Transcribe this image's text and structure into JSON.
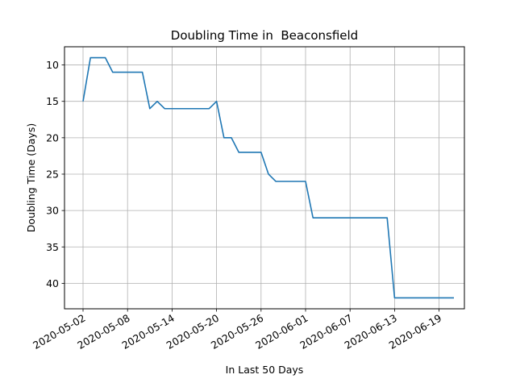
{
  "chart_data": {
    "type": "line",
    "title": "Doubling Time in  Beaconsfield",
    "xlabel": "In Last 50 Days",
    "ylabel": "Doubling Time (Days)",
    "y_inverted": true,
    "ylim": [
      43.5,
      7.5
    ],
    "y_ticks": [
      10,
      15,
      20,
      25,
      30,
      35,
      40
    ],
    "x_ticks": [
      "2020-05-02",
      "2020-05-08",
      "2020-05-14",
      "2020-05-20",
      "2020-05-26",
      "2020-06-01",
      "2020-06-07",
      "2020-06-13",
      "2020-06-19"
    ],
    "grid": true,
    "line_color": "#1f77b4",
    "series": [
      {
        "x": [
          "2020-05-02",
          "2020-05-03",
          "2020-05-04",
          "2020-05-05",
          "2020-05-06",
          "2020-05-07",
          "2020-05-08",
          "2020-05-09",
          "2020-05-10",
          "2020-05-11",
          "2020-05-12",
          "2020-05-13",
          "2020-05-14",
          "2020-05-15",
          "2020-05-16",
          "2020-05-17",
          "2020-05-18",
          "2020-05-19",
          "2020-05-20",
          "2020-05-21",
          "2020-05-22",
          "2020-05-23",
          "2020-05-24",
          "2020-05-25",
          "2020-05-26",
          "2020-05-27",
          "2020-05-28",
          "2020-05-29",
          "2020-05-30",
          "2020-05-31",
          "2020-06-01",
          "2020-06-02",
          "2020-06-03",
          "2020-06-04",
          "2020-06-05",
          "2020-06-06",
          "2020-06-07",
          "2020-06-08",
          "2020-06-09",
          "2020-06-10",
          "2020-06-11",
          "2020-06-12",
          "2020-06-13",
          "2020-06-14",
          "2020-06-15",
          "2020-06-16",
          "2020-06-17",
          "2020-06-18",
          "2020-06-19",
          "2020-06-20",
          "2020-06-21"
        ],
        "values": [
          15,
          9,
          9,
          9,
          11,
          11,
          11,
          11,
          11,
          16,
          15,
          16,
          16,
          16,
          16,
          16,
          16,
          16,
          15,
          20,
          20,
          22,
          22,
          22,
          22,
          25,
          26,
          26,
          26,
          26,
          26,
          31,
          31,
          31,
          31,
          31,
          31,
          31,
          31,
          31,
          31,
          31,
          42,
          42,
          42,
          42,
          42,
          42,
          42,
          42,
          42
        ]
      }
    ]
  }
}
